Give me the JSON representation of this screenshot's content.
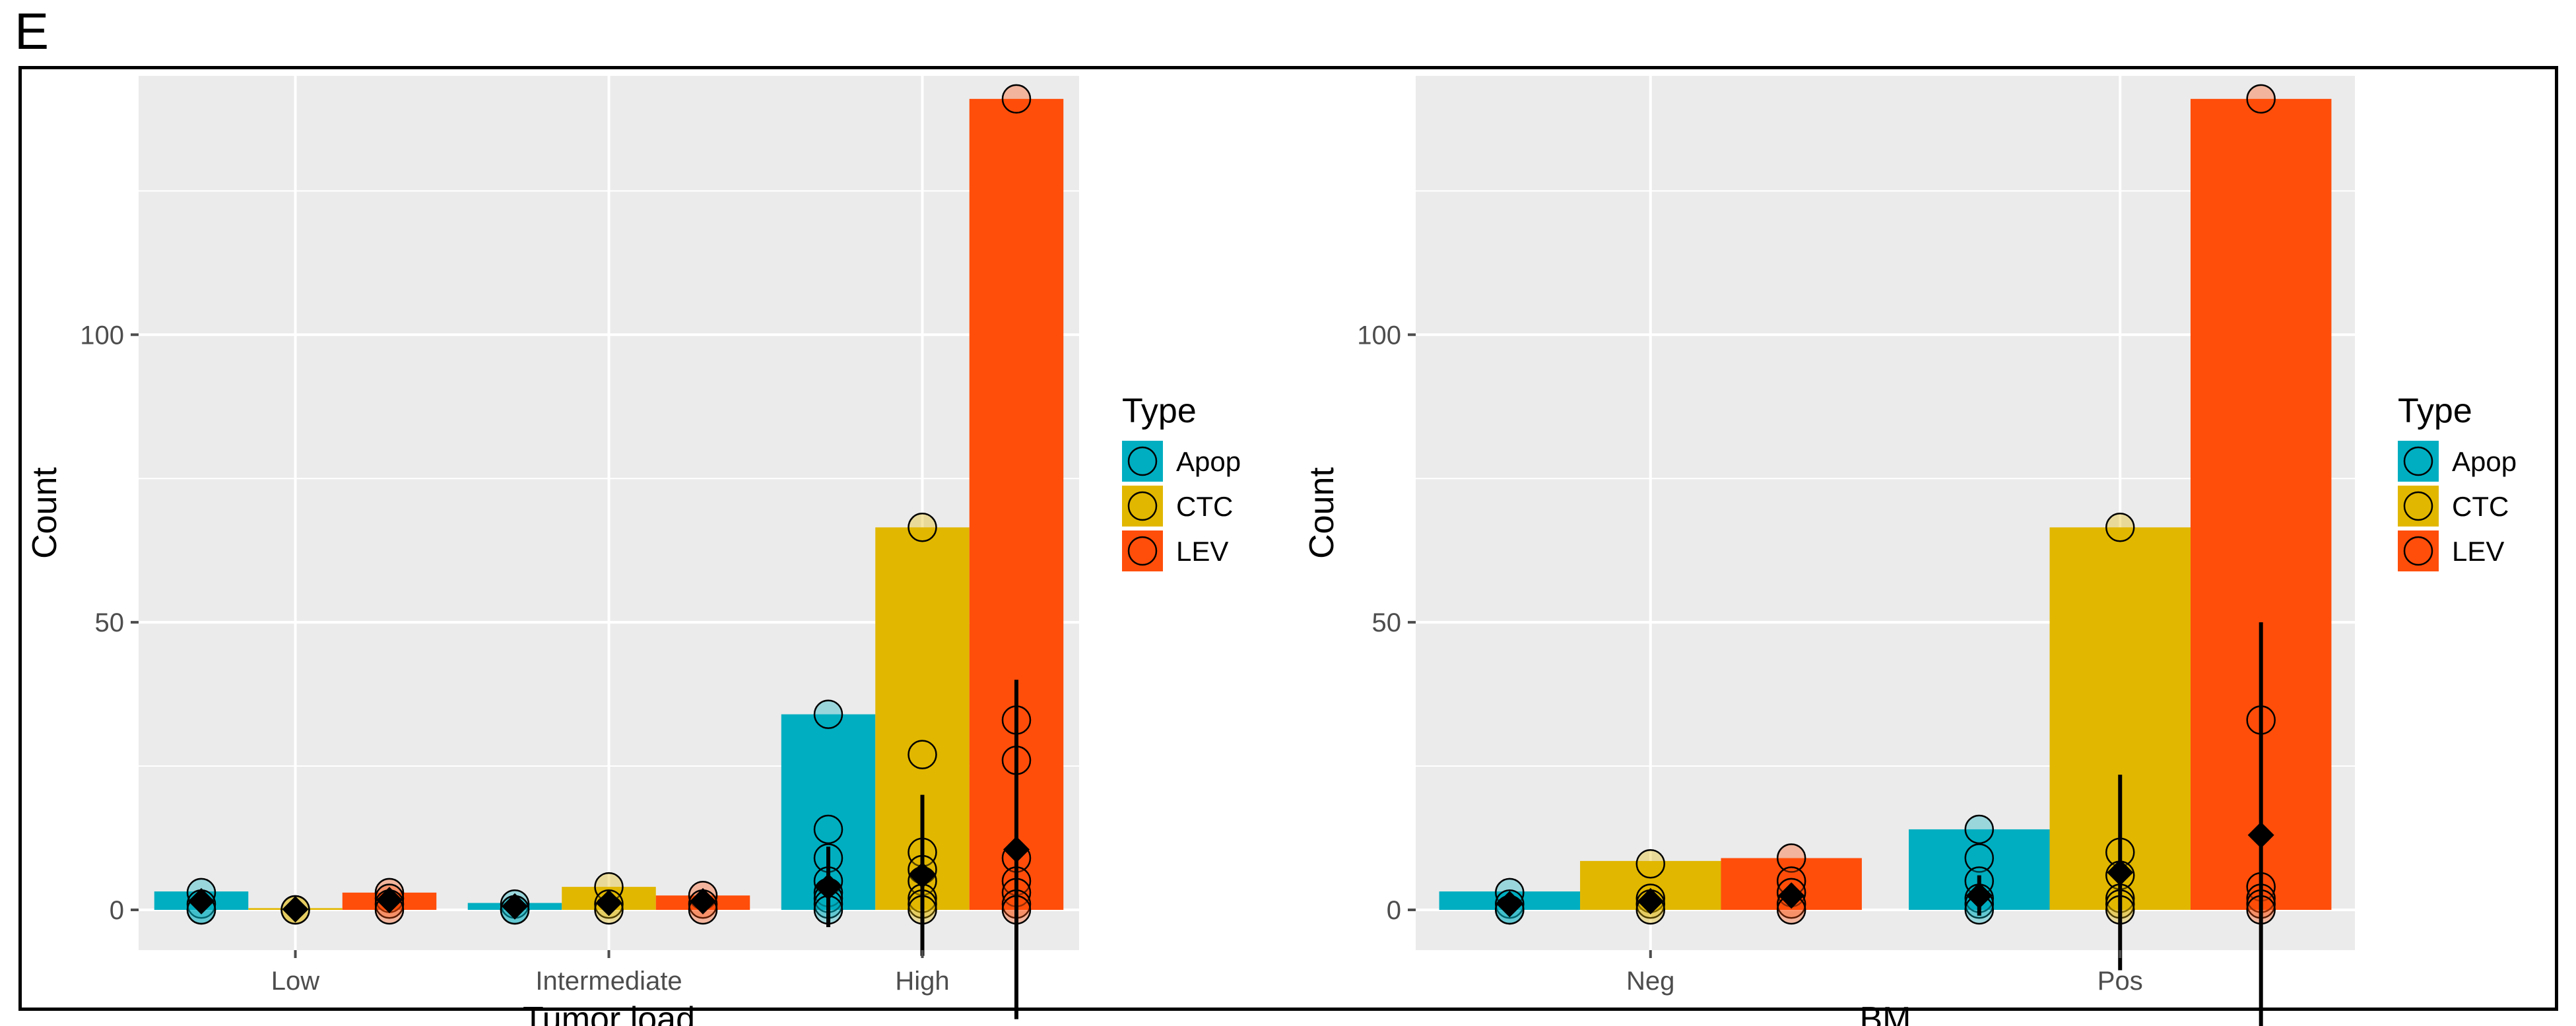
{
  "panel_label": "E",
  "chart_data": [
    {
      "type": "bar",
      "xlabel": "Tumor load",
      "ylabel": "Count",
      "categories": [
        "Low",
        "Intermediate",
        "High"
      ],
      "ylim": [
        -7,
        145
      ],
      "yticks": [
        0,
        50,
        100
      ],
      "grid": true,
      "legend": {
        "title": "Type",
        "position": "right",
        "entries": [
          "Apop",
          "CTC",
          "LEV"
        ]
      },
      "series": [
        {
          "name": "Apop",
          "values": [
            3.2,
            1.2,
            34.0
          ],
          "points": [
            [
              3,
              1,
              0,
              0
            ],
            [
              1,
              0,
              0
            ],
            [
              34,
              14,
              9,
              5,
              3,
              2,
              1,
              0
            ]
          ],
          "mean": [
            1.5,
            0.6,
            4.0
          ],
          "err": [
            1.5,
            1.2,
            7.0
          ]
        },
        {
          "name": "CTC",
          "values": [
            0.3,
            4.0,
            66.5
          ],
          "points": [
            [
              0,
              0
            ],
            [
              4,
              1,
              0
            ],
            [
              66.5,
              27,
              10,
              7,
              5,
              2,
              1,
              0
            ]
          ],
          "mean": [
            0.1,
            1.2,
            6.0
          ],
          "err": [
            0.5,
            2.0,
            14.0
          ]
        },
        {
          "name": "LEV",
          "values": [
            3.0,
            2.5,
            141
          ],
          "points": [
            [
              3,
              2,
              1,
              0
            ],
            [
              2.5,
              1,
              0
            ],
            [
              141,
              33,
              26,
              9,
              5,
              3,
              1,
              0
            ]
          ],
          "mean": [
            1.7,
            1.5,
            10.5
          ],
          "err": [
            1.5,
            1.5,
            29.5
          ]
        }
      ]
    },
    {
      "type": "bar",
      "xlabel": "BM",
      "ylabel": "Count",
      "categories": [
        "Neg",
        "Pos"
      ],
      "ylim": [
        -7,
        145
      ],
      "yticks": [
        0,
        50,
        100
      ],
      "grid": true,
      "legend": {
        "title": "Type",
        "position": "right",
        "entries": [
          "Apop",
          "CTC",
          "LEV"
        ]
      },
      "series": [
        {
          "name": "Apop",
          "values": [
            3.2,
            14.0
          ],
          "points": [
            [
              3,
              1,
              0,
              0
            ],
            [
              14,
              9,
              5,
              2,
              1,
              0
            ]
          ],
          "mean": [
            1.0,
            2.5
          ],
          "err": [
            1.5,
            3.5
          ]
        },
        {
          "name": "CTC",
          "values": [
            8.5,
            66.5
          ],
          "points": [
            [
              8,
              2,
              1,
              0
            ],
            [
              66.5,
              10,
              6,
              2,
              1,
              0
            ]
          ],
          "mean": [
            1.5,
            6.5
          ],
          "err": [
            2.0,
            17.0
          ]
        },
        {
          "name": "LEV",
          "values": [
            9.0,
            141
          ],
          "points": [
            [
              9,
              5,
              3,
              1,
              0
            ],
            [
              141,
              33,
              4,
              2,
              1,
              0
            ]
          ],
          "mean": [
            2.5,
            13.0
          ],
          "err": [
            2.0,
            37.0
          ]
        }
      ]
    }
  ],
  "colors": {
    "Apop": "#00AEC1",
    "CTC": "#E1B700",
    "LEV": "#FF4E0A",
    "panel_bg": "#EBEBEB",
    "grid": "#FFFFFF",
    "tick": "#4D4D4D"
  }
}
